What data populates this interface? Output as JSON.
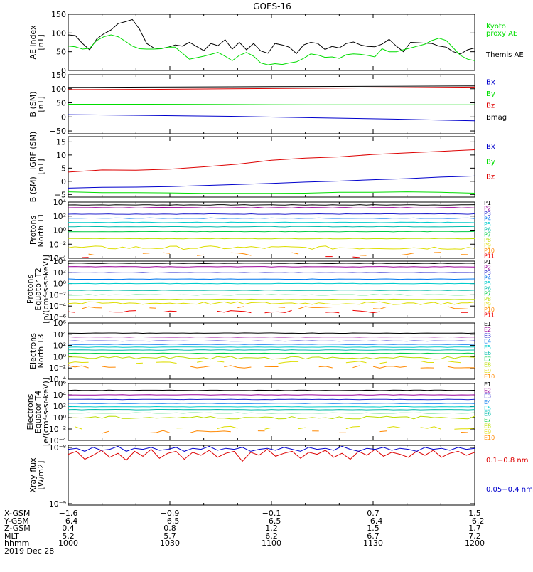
{
  "title": "GOES-16",
  "colors": {
    "black": "#000000",
    "blue": "#0000cc",
    "green": "#00dd00",
    "red": "#dd0000",
    "ch": [
      "#000000",
      "#990099",
      "#2222cc",
      "#0077ee",
      "#00cccc",
      "#00bbaa",
      "#00cc44",
      "#bbdd00",
      "#dddd00",
      "#ff8800",
      "#ee0000",
      "#cc0000"
    ]
  },
  "chart_data": [
    {
      "type": "line",
      "id": "ae",
      "ylabel": [
        "AE index",
        "[nT]"
      ],
      "ylim": [
        0,
        150
      ],
      "yticks": [
        "0",
        "50",
        "100",
        "150"
      ],
      "legend": [
        {
          "name": "Kyoto",
          "color": "green"
        },
        {
          "name": "proxy AE",
          "color": "green"
        },
        {
          "name": "Themis AE",
          "color": "black"
        }
      ],
      "series": [
        {
          "name": "Themis AE",
          "color": "black",
          "values": [
            95,
            93,
            72,
            55,
            84,
            98,
            108,
            125,
            130,
            136,
            110,
            72,
            60,
            58,
            62,
            68,
            65,
            75,
            64,
            53,
            72,
            66,
            82,
            57,
            75,
            55,
            72,
            52,
            46,
            72,
            68,
            62,
            45,
            68,
            75,
            72,
            56,
            64,
            60,
            72,
            76,
            68,
            64,
            63,
            70,
            83,
            65,
            50,
            75,
            74,
            73,
            72,
            65,
            62,
            50,
            44,
            55,
            60
          ]
        },
        {
          "name": "Kyoto proxy AE",
          "color": "green",
          "values": [
            65,
            63,
            57,
            59,
            80,
            90,
            95,
            90,
            78,
            65,
            58,
            57,
            57,
            58,
            62,
            62,
            46,
            30,
            34,
            38,
            43,
            48,
            38,
            26,
            40,
            48,
            38,
            20,
            15,
            18,
            16,
            20,
            23,
            32,
            44,
            41,
            35,
            36,
            32,
            42,
            44,
            43,
            40,
            36,
            58,
            50,
            50,
            55,
            60,
            65,
            70,
            80,
            86,
            80,
            60,
            40,
            30,
            26
          ]
        }
      ]
    },
    {
      "type": "line",
      "id": "bsm",
      "ylabel": [
        "B (SM)",
        "[nT]"
      ],
      "ylim": [
        -60,
        150
      ],
      "yticks": [
        "−50",
        "0",
        "50",
        "100",
        "150"
      ],
      "legend": [
        {
          "name": "Bx",
          "color": "blue"
        },
        {
          "name": "By",
          "color": "green"
        },
        {
          "name": "Bz",
          "color": "red"
        },
        {
          "name": "Bmag",
          "color": "black"
        }
      ],
      "series": [
        {
          "name": "Bmag",
          "color": "black",
          "values": [
            105,
            106,
            107,
            108,
            109,
            110
          ]
        },
        {
          "name": "Bz",
          "color": "red",
          "values": [
            97,
            98,
            100,
            102,
            104,
            106
          ]
        },
        {
          "name": "By",
          "color": "green",
          "values": [
            45,
            45,
            44,
            43,
            43,
            43
          ]
        },
        {
          "name": "Bx",
          "color": "blue",
          "values": [
            8,
            5,
            2,
            -3,
            -8,
            -14
          ]
        }
      ]
    },
    {
      "type": "line",
      "id": "bigrf",
      "ylabel": [
        "B (SM)−IGRF (SM)",
        "[nT]"
      ],
      "ylim": [
        -6,
        17
      ],
      "yticks": [
        "−5",
        "0",
        "5",
        "10",
        "15"
      ],
      "legend": [
        {
          "name": "Bx",
          "color": "blue"
        },
        {
          "name": "By",
          "color": "green"
        },
        {
          "name": "Bz",
          "color": "red"
        }
      ],
      "series": [
        {
          "name": "Bz",
          "color": "red",
          "values": [
            3.5,
            4.3,
            4.2,
            4.6,
            5.5,
            6.5,
            8.0,
            8.8,
            9.3,
            10.2,
            10.8,
            11.4,
            12.0
          ]
        },
        {
          "name": "Bx",
          "color": "blue",
          "values": [
            -2.6,
            -2.3,
            -2.2,
            -2.0,
            -1.6,
            -1.2,
            -0.8,
            -0.3,
            0.1,
            0.6,
            1.0,
            1.6,
            2.0
          ]
        },
        {
          "name": "By",
          "color": "green",
          "values": [
            -4.0,
            -4.3,
            -4.3,
            -4.4,
            -4.6,
            -4.6,
            -4.6,
            -4.5,
            -4.2,
            -4.2,
            -4.0,
            -4.2,
            -4.5
          ]
        }
      ]
    },
    {
      "type": "line",
      "id": "pn",
      "log": true,
      "ylabel": [
        "Protons",
        "North T1"
      ],
      "ylim": [
        -4,
        4
      ],
      "yticks": [
        "10⁻⁴",
        "10⁻²",
        "10⁰",
        "10²",
        "10⁴"
      ],
      "legend": [
        "P1",
        "P2",
        "P3",
        "P4",
        "P5",
        "P6",
        "P7",
        "P8",
        "P9",
        "P10",
        "P11"
      ],
      "levels": [
        3.6,
        3.2,
        2.3,
        1.7,
        1.1,
        0.5,
        -0.2,
        -1.2,
        -2.5,
        -3.4,
        -4.0
      ]
    },
    {
      "type": "line",
      "id": "pe",
      "log": true,
      "ylabel": [
        "Protons",
        "Equator T2",
        "[p/(cm²-s-sr-keV)]"
      ],
      "ylim": [
        -6,
        4
      ],
      "yticks": [
        "10⁻⁶",
        "10⁻⁴",
        "10⁻²",
        "10⁰",
        "10²",
        "10⁴"
      ],
      "legend": [
        "P1",
        "P2",
        "P3",
        "P4",
        "P5",
        "P6",
        "P7",
        "P8",
        "P9",
        "P10",
        "P11"
      ],
      "levels": [
        3.6,
        3.0,
        2.0,
        0.8,
        0.0,
        -1.2,
        -2.0,
        -2.8,
        -3.5,
        -4.3,
        -5.0
      ]
    },
    {
      "type": "line",
      "id": "en",
      "log": true,
      "ylabel": [
        "Electrons",
        "North T3"
      ],
      "ylim": [
        -4,
        6
      ],
      "yticks": [
        "10⁻⁴",
        "10⁻²",
        "10⁰",
        "10²",
        "10⁴",
        "10⁶"
      ],
      "legend": [
        "E1",
        "E2",
        "E3",
        "E4",
        "E5",
        "E6",
        "E7",
        "E8",
        "E9",
        "E10"
      ],
      "levels": [
        4.2,
        3.5,
        2.8,
        2.2,
        1.7,
        1.2,
        0.6,
        -0.2,
        -1.0,
        -1.8
      ]
    },
    {
      "type": "line",
      "id": "ee",
      "log": true,
      "ylabel": [
        "Electrons",
        "Equator T4",
        "[e/(cm²-s-sr-keV)]"
      ],
      "ylim": [
        -4,
        6
      ],
      "yticks": [
        "10⁻⁴",
        "10⁻²",
        "10⁰",
        "10²",
        "10⁴",
        "10⁶"
      ],
      "legend": [
        "E1",
        "E2",
        "E3",
        "E4",
        "E5",
        "E6",
        "E7",
        "E8",
        "E9",
        "E10"
      ],
      "levels": [
        4.8,
        4.0,
        3.2,
        2.5,
        1.9,
        1.4,
        0.8,
        0.0,
        -1.8,
        -2.5
      ]
    },
    {
      "type": "line",
      "id": "xray",
      "log": true,
      "ylabel": [
        "Xray flux",
        "[W/m2]"
      ],
      "ylim": [
        -9,
        -6
      ],
      "yticks": [
        "10⁻⁹",
        "10⁻⁸"
      ],
      "legend": [
        {
          "name": "0.1−0.8 nm",
          "color": "red"
        },
        {
          "name": "0.05−0.4 nm",
          "color": "blue"
        }
      ],
      "series": [
        {
          "name": "0.1−0.8 nm",
          "color": "red",
          "values": [
            -6.45,
            -6.3,
            -6.7,
            -6.5,
            -6.25,
            -6.6,
            -6.4,
            -6.75,
            -6.3,
            -6.55,
            -6.2,
            -6.65,
            -6.4,
            -6.3,
            -6.7,
            -6.35,
            -6.5,
            -6.25,
            -6.6,
            -6.4,
            -6.3,
            -6.8,
            -6.35,
            -6.5,
            -6.2,
            -6.55,
            -6.4,
            -6.3,
            -6.65,
            -6.35,
            -6.45,
            -6.25,
            -6.6,
            -6.4,
            -6.7,
            -6.3,
            -6.5,
            -6.2,
            -6.55,
            -6.35,
            -6.45,
            -6.6,
            -6.3,
            -6.5,
            -6.25,
            -6.6,
            -6.4,
            -6.3,
            -6.5,
            -6.35
          ]
        },
        {
          "name": "0.05−0.4 nm",
          "color": "blue",
          "values": [
            -6.2,
            -6.15,
            -6.3,
            -6.1,
            -6.25,
            -6.2,
            -6.05,
            -6.3,
            -6.15,
            -6.2,
            -6.1,
            -6.25,
            -6.2,
            -6.1,
            -6.3,
            -6.15,
            -6.2,
            -6.05,
            -6.25,
            -6.15,
            -6.2,
            -6.1,
            -6.3,
            -6.2,
            -6.15,
            -6.25,
            -6.1,
            -6.2,
            -6.3,
            -6.1,
            -6.2,
            -6.15,
            -6.25,
            -6.05,
            -6.2,
            -6.3,
            -6.15,
            -6.2,
            -6.1,
            -6.25,
            -6.15,
            -6.2,
            -6.3,
            -6.1,
            -6.2,
            -6.15,
            -6.25,
            -6.1,
            -6.2,
            -6.15
          ]
        }
      ]
    }
  ],
  "x_axis": {
    "range": [
      0,
      120
    ],
    "ticks": [
      0,
      30,
      60,
      90,
      120
    ],
    "rows": [
      {
        "label": "X-GSM",
        "values": [
          "−1.6",
          "−0.9",
          "−0.1",
          "0.7",
          "1.5"
        ]
      },
      {
        "label": "Y-GSM",
        "values": [
          "−6.4",
          "−6.5",
          "−6.5",
          "−6.4",
          "−6.2"
        ]
      },
      {
        "label": "Z-GSM",
        "values": [
          "0.4",
          "0.8",
          "1.2",
          "1.5",
          "1.7"
        ]
      },
      {
        "label": "MLT",
        "values": [
          "5.2",
          "5.7",
          "6.2",
          "6.7",
          "7.2"
        ]
      },
      {
        "label": "hhmm",
        "values": [
          "1000",
          "1030",
          "1100",
          "1130",
          "1200"
        ]
      }
    ],
    "date": "2019 Dec 28"
  }
}
